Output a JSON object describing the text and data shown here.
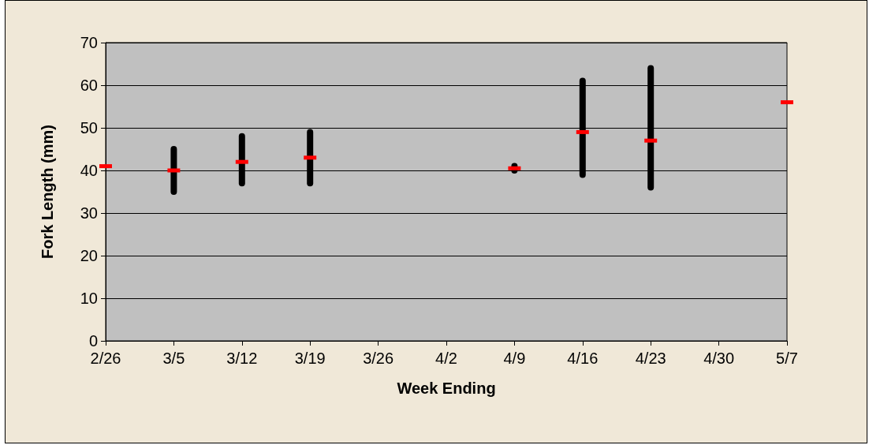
{
  "chart_data": {
    "type": "scatter",
    "xlabel": "Week Ending",
    "ylabel": "Fork Length (mm)",
    "categories": [
      "2/26",
      "3/5",
      "3/12",
      "3/19",
      "3/26",
      "4/2",
      "4/9",
      "4/16",
      "4/23",
      "4/30",
      "5/7"
    ],
    "series": [
      {
        "color": "#ff0000",
        "x": [
          "2/26",
          "3/5",
          "3/12",
          "3/19",
          "4/9",
          "4/16",
          "4/23",
          "5/7"
        ],
        "values": [
          41,
          40,
          42,
          43,
          40.5,
          49,
          47,
          56
        ],
        "errors": [
          null,
          [
            35,
            45
          ],
          [
            37,
            48
          ],
          [
            37,
            49
          ],
          [
            40,
            41
          ],
          [
            39,
            61
          ],
          [
            36,
            64
          ],
          null
        ]
      }
    ],
    "ylim": [
      0,
      70
    ],
    "yticks": [
      0,
      10,
      20,
      30,
      40,
      50,
      60,
      70
    ],
    "grid": "y",
    "marker": "square"
  }
}
